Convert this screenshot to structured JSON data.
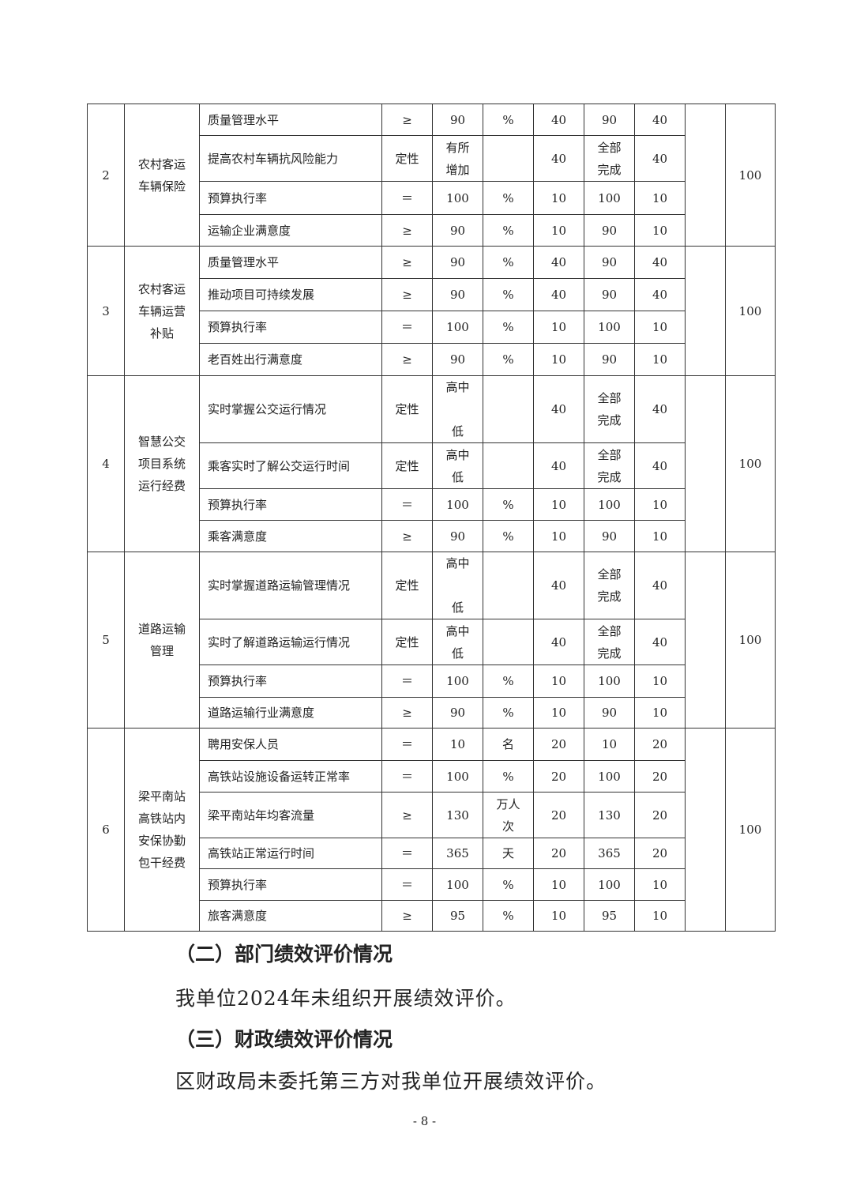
{
  "table": {
    "groups": [
      {
        "no": "2",
        "project": "农村客运\n车辆保险",
        "total": "100",
        "rows": [
          [
            "质量管理水平",
            "≥",
            "90",
            "%",
            "40",
            "90",
            "40"
          ],
          [
            "提高农村车辆抗风险能力",
            "定性",
            "有所\n增加",
            "",
            "40",
            "全部\n完成",
            "40"
          ],
          [
            "预算执行率",
            "＝",
            "100",
            "%",
            "10",
            "100",
            "10"
          ],
          [
            "运输企业满意度",
            "≥",
            "90",
            "%",
            "10",
            "90",
            "10"
          ]
        ]
      },
      {
        "no": "3",
        "project": "农村客运\n车辆运营\n补贴",
        "total": "100",
        "rows": [
          [
            "质量管理水平",
            "≥",
            "90",
            "%",
            "40",
            "90",
            "40"
          ],
          [
            "推动项目可持续发展",
            "≥",
            "90",
            "%",
            "40",
            "90",
            "40"
          ],
          [
            "预算执行率",
            "＝",
            "100",
            "%",
            "10",
            "100",
            "10"
          ],
          [
            "老百姓出行满意度",
            "≥",
            "90",
            "%",
            "10",
            "90",
            "10"
          ]
        ]
      },
      {
        "no": "4",
        "project": "智慧公交\n项目系统\n运行经费",
        "total": "100",
        "rows": [
          [
            "实时掌握公交运行情况",
            "定性",
            "高中\n\n低",
            "",
            "40",
            "全部\n完成",
            "40"
          ],
          [
            "乘客实时了解公交运行时间",
            "定性",
            "高中\n低",
            "",
            "40",
            "全部\n完成",
            "40"
          ],
          [
            "预算执行率",
            "＝",
            "100",
            "%",
            "10",
            "100",
            "10"
          ],
          [
            "乘客满意度",
            "≥",
            "90",
            "%",
            "10",
            "90",
            "10"
          ]
        ]
      },
      {
        "no": "5",
        "project": "道路运输\n管理",
        "total": "100",
        "rows": [
          [
            "实时掌握道路运输管理情况",
            "定性",
            "高中\n\n低",
            "",
            "40",
            "全部\n完成",
            "40"
          ],
          [
            "实时了解道路运输运行情况",
            "定性",
            "高中\n低",
            "",
            "40",
            "全部\n完成",
            "40"
          ],
          [
            "预算执行率",
            "＝",
            "100",
            "%",
            "10",
            "100",
            "10"
          ],
          [
            "道路运输行业满意度",
            "≥",
            "90",
            "%",
            "10",
            "90",
            "10"
          ]
        ]
      },
      {
        "no": "6",
        "project": "梁平南站\n高铁站内\n安保协勤\n包干经费",
        "total": "100",
        "rows": [
          [
            "聘用安保人员",
            "＝",
            "10",
            "名",
            "20",
            "10",
            "20"
          ],
          [
            "高铁站设施设备运转正常率",
            "＝",
            "100",
            "%",
            "20",
            "100",
            "20"
          ],
          [
            "梁平南站年均客流量",
            "≥",
            "130",
            "万人\n次",
            "20",
            "130",
            "20"
          ],
          [
            "高铁站正常运行时间",
            "＝",
            "365",
            "天",
            "20",
            "365",
            "20"
          ],
          [
            "预算执行率",
            "＝",
            "100",
            "%",
            "10",
            "100",
            "10"
          ],
          [
            "旅客满意度",
            "≥",
            "95",
            "%",
            "10",
            "95",
            "10"
          ]
        ]
      }
    ]
  },
  "sections": {
    "dept_heading": "（二）部门绩效评价情况",
    "dept_text": "我单位2024年未组织开展绩效评价。",
    "fin_heading": "（三）财政绩效评价情况",
    "fin_text": "区财政局未委托第三方对我单位开展绩效评价。"
  },
  "page_number": "- 8 -"
}
